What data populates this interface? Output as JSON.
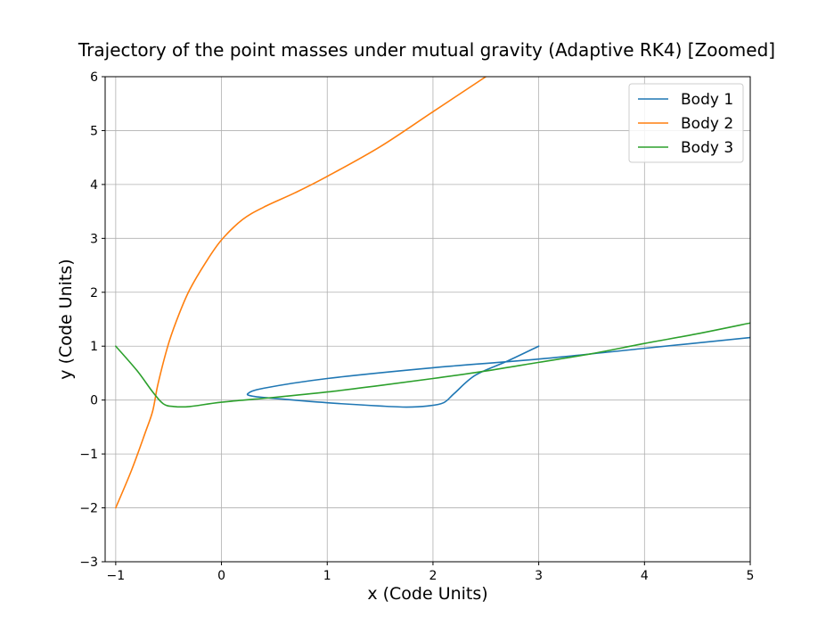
{
  "chart_data": {
    "type": "line",
    "title": "Trajectory of the point masses under mutual gravity (Adaptive RK4) [Zoomed]",
    "xlabel": "x (Code Units)",
    "ylabel": "y (Code Units)",
    "xlim": [
      -1.1,
      5
    ],
    "ylim": [
      -3,
      6
    ],
    "xticks": [
      -1,
      0,
      1,
      2,
      3,
      4,
      5
    ],
    "yticks": [
      -3,
      -2,
      -1,
      0,
      1,
      2,
      3,
      4,
      5,
      6
    ],
    "xtick_labels": [
      "−1",
      "0",
      "1",
      "2",
      "3",
      "4",
      "5"
    ],
    "ytick_labels": [
      "−3",
      "−2",
      "−1",
      "0",
      "1",
      "2",
      "3",
      "4",
      "5",
      "6"
    ],
    "grid": true,
    "legend_position": "top-right",
    "series": [
      {
        "name": "Body 1",
        "color": "#1f77b4",
        "points": [
          [
            3.0,
            1.0
          ],
          [
            2.7,
            0.72
          ],
          [
            2.4,
            0.46
          ],
          [
            2.2,
            0.12
          ],
          [
            2.1,
            -0.05
          ],
          [
            1.95,
            -0.11
          ],
          [
            1.75,
            -0.13
          ],
          [
            1.5,
            -0.11
          ],
          [
            1.0,
            -0.05
          ],
          [
            0.5,
            0.03
          ],
          [
            0.3,
            0.07
          ],
          [
            0.25,
            0.12
          ],
          [
            0.4,
            0.22
          ],
          [
            1.0,
            0.4
          ],
          [
            2.0,
            0.6
          ],
          [
            3.0,
            0.76
          ],
          [
            4.0,
            0.96
          ],
          [
            5.0,
            1.16
          ]
        ]
      },
      {
        "name": "Body 2",
        "color": "#ff7f0e",
        "points": [
          [
            -1.0,
            -2.0
          ],
          [
            -0.85,
            -1.3
          ],
          [
            -0.72,
            -0.6
          ],
          [
            -0.65,
            -0.2
          ],
          [
            -0.6,
            0.3
          ],
          [
            -0.5,
            1.05
          ],
          [
            -0.4,
            1.6
          ],
          [
            -0.3,
            2.05
          ],
          [
            -0.15,
            2.55
          ],
          [
            0.0,
            2.97
          ],
          [
            0.2,
            3.35
          ],
          [
            0.4,
            3.58
          ],
          [
            0.7,
            3.85
          ],
          [
            1.0,
            4.15
          ],
          [
            1.5,
            4.7
          ],
          [
            2.0,
            5.35
          ],
          [
            2.5,
            6.0
          ]
        ]
      },
      {
        "name": "Body 3",
        "color": "#2ca02c",
        "points": [
          [
            -1.0,
            1.0
          ],
          [
            -0.8,
            0.55
          ],
          [
            -0.65,
            0.15
          ],
          [
            -0.55,
            -0.07
          ],
          [
            -0.45,
            -0.12
          ],
          [
            -0.3,
            -0.12
          ],
          [
            0.0,
            -0.04
          ],
          [
            0.5,
            0.05
          ],
          [
            1.0,
            0.15
          ],
          [
            1.5,
            0.27
          ],
          [
            2.0,
            0.4
          ],
          [
            2.5,
            0.54
          ],
          [
            3.0,
            0.7
          ],
          [
            3.5,
            0.86
          ],
          [
            4.0,
            1.05
          ],
          [
            4.5,
            1.23
          ],
          [
            5.0,
            1.43
          ]
        ]
      }
    ]
  }
}
